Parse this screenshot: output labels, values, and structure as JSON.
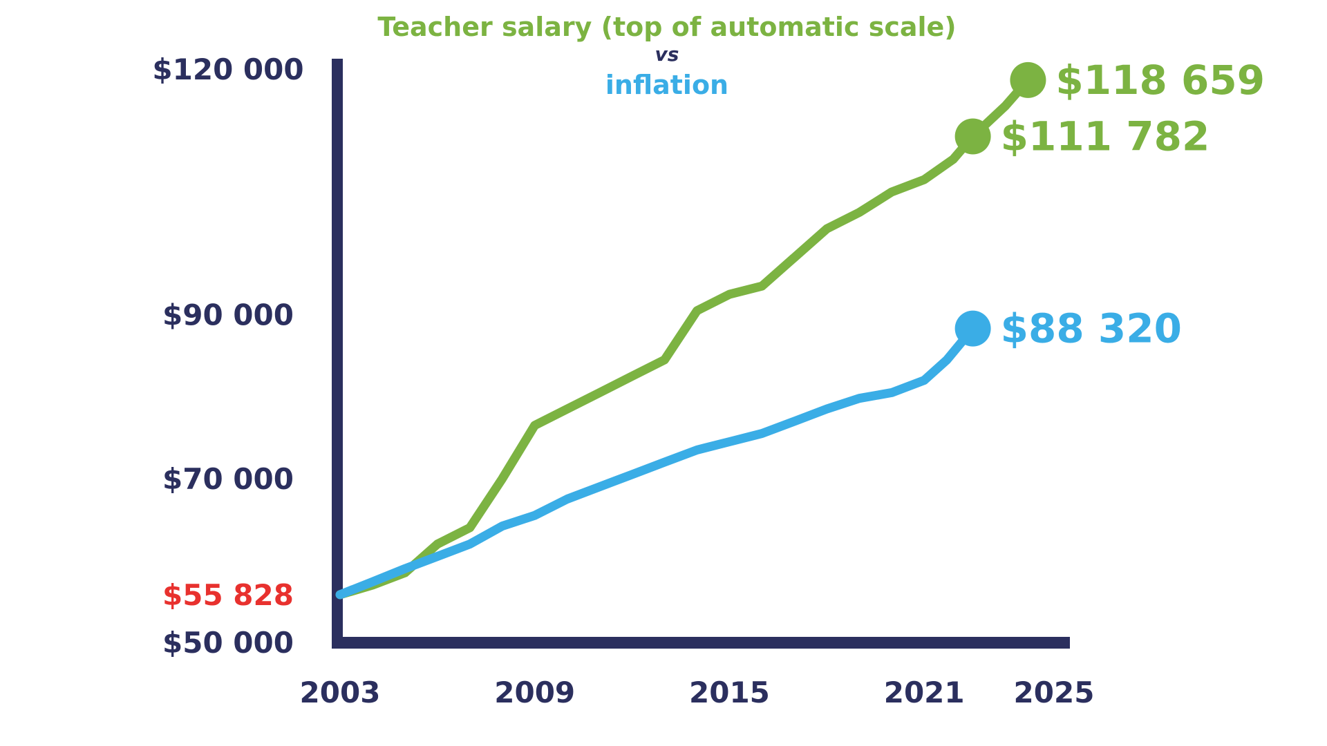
{
  "chart_data": {
    "type": "line",
    "title": "Teacher salary (top of automatic scale)",
    "title_connector": "vs",
    "subtitle": "inflation",
    "xlabel": "",
    "ylabel": "",
    "xlim": [
      2003,
      2025
    ],
    "ylim": [
      50000,
      120000
    ],
    "x_ticks": [
      {
        "value": 2003,
        "label": "2003"
      },
      {
        "value": 2009,
        "label": "2009"
      },
      {
        "value": 2015,
        "label": "2015"
      },
      {
        "value": 2021,
        "label": "2021"
      },
      {
        "value": 2025,
        "label": "2025"
      }
    ],
    "y_ticks": [
      {
        "value": 120000,
        "label": "$120 000",
        "highlight": false
      },
      {
        "value": 90000,
        "label": "$90 000",
        "highlight": false
      },
      {
        "value": 70000,
        "label": "$70 000",
        "highlight": false
      },
      {
        "value": 55828,
        "label": "$55 828",
        "highlight": true
      },
      {
        "value": 50000,
        "label": "$50 000",
        "highlight": false
      }
    ],
    "grid": false,
    "legend": "none",
    "series": [
      {
        "key": "teacher-salary",
        "color": "#7cb342",
        "x": [
          2003,
          2004,
          2005,
          2006,
          2007,
          2008,
          2009,
          2010,
          2011,
          2012,
          2013,
          2014,
          2015,
          2016,
          2017,
          2018,
          2019,
          2020,
          2021,
          2021.9,
          2022.5,
          2023.5,
          2024.2
        ],
        "y": [
          55828,
          57000,
          58500,
          62000,
          64000,
          70000,
          76500,
          78500,
          80500,
          82500,
          84500,
          90500,
          92500,
          93500,
          97000,
          100500,
          102500,
          105000,
          106500,
          109000,
          111782,
          115500,
          118659
        ],
        "end_points": [
          {
            "x": 2022.5,
            "y": 111782,
            "label": "$111 782"
          },
          {
            "x": 2024.2,
            "y": 118659,
            "label": "$118 659"
          }
        ]
      },
      {
        "key": "inflation",
        "color": "#3aade6",
        "x": [
          2003,
          2004,
          2005,
          2006,
          2007,
          2008,
          2009,
          2010,
          2011,
          2012,
          2013,
          2014,
          2015,
          2016,
          2017,
          2018,
          2019,
          2020,
          2021,
          2021.7,
          2022.5
        ],
        "y": [
          55828,
          57400,
          59000,
          60500,
          62000,
          64200,
          65500,
          67500,
          69000,
          70500,
          72000,
          73500,
          74500,
          75500,
          77000,
          78500,
          79800,
          80500,
          82000,
          84500,
          88320
        ],
        "end_points": [
          {
            "x": 2022.5,
            "y": 88320,
            "label": "$88 320"
          }
        ]
      }
    ]
  },
  "colors": {
    "axis": "#2b2f5e",
    "tick_label": "#2b2f5e",
    "highlight_tick": "#e8312e",
    "teacher": "#7cb342",
    "inflation": "#3aade6",
    "connector": "#2b2f5e"
  }
}
